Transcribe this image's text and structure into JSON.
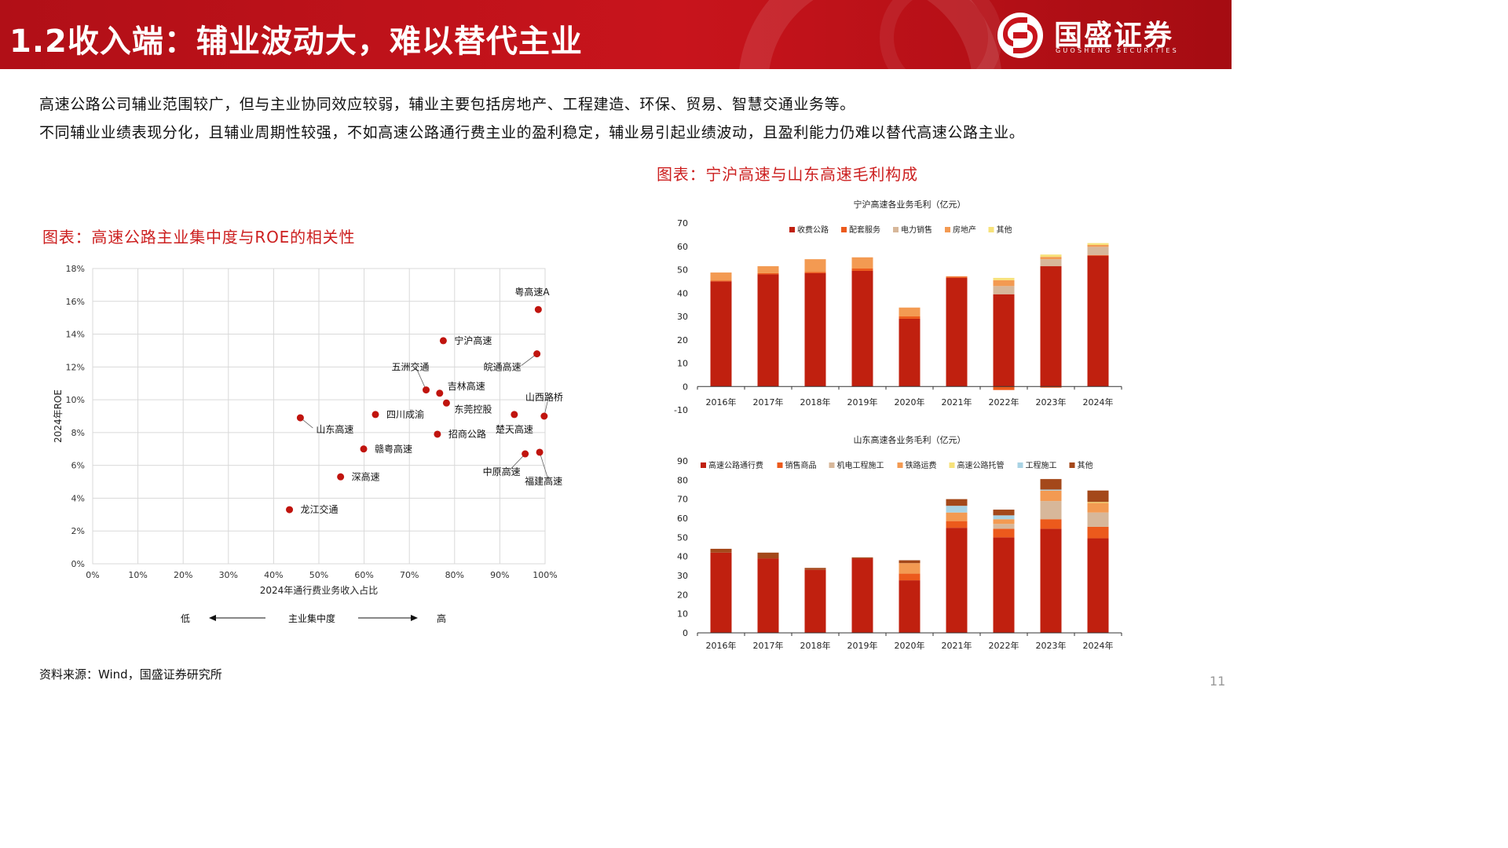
{
  "header": {
    "title": "1.2收入端：辅业波动大，难以替代主业",
    "logo_text": "国盛证券",
    "logo_sub": "GUOSHENG SECURITIES",
    "accent_color": "#c8141c"
  },
  "body": {
    "paragraph1": "高速公路公司辅业范围较广，但与主业协同效应较弱，辅业主要包括房地产、工程建造、环保、贸易、智慧交通业务等。",
    "paragraph2": "不同辅业业绩表现分化，且辅业周期性较强，不如高速公路通行费主业的盈利稳定，辅业易引起业绩波动，且盈利能力仍难以替代高速公路主业。"
  },
  "captions": {
    "scatter": "图表：高速公路主业集中度与ROE的相关性",
    "bars": "图表：宁沪高速与山东高速毛利构成"
  },
  "source": "资料来源：Wind，国盛证券研究所",
  "page_number": "11",
  "chart_data": [
    {
      "type": "scatter",
      "title": "",
      "xlabel": "2024年通行费业务收入占比",
      "ylabel": "2024年ROE",
      "xlim": [
        0,
        100
      ],
      "ylim": [
        0,
        18
      ],
      "x_ticks": [
        "0%",
        "10%",
        "20%",
        "30%",
        "40%",
        "50%",
        "60%",
        "70%",
        "80%",
        "90%",
        "100%"
      ],
      "y_ticks": [
        "0%",
        "2%",
        "4%",
        "6%",
        "8%",
        "10%",
        "12%",
        "14%",
        "16%",
        "18%"
      ],
      "grid": true,
      "marker_color": "#c0140e",
      "points": [
        {
          "name": "粤高速A",
          "x": 98.5,
          "y": 15.5
        },
        {
          "name": "宁沪高速",
          "x": 77.5,
          "y": 13.6
        },
        {
          "name": "皖通高速",
          "x": 98.2,
          "y": 12.8
        },
        {
          "name": "五洲交通",
          "x": 73.7,
          "y": 10.6
        },
        {
          "name": "吉林高速",
          "x": 76.7,
          "y": 10.4
        },
        {
          "name": "山西路桥",
          "x": 99.8,
          "y": 9.0
        },
        {
          "name": "东莞控股",
          "x": 78.2,
          "y": 9.8
        },
        {
          "name": "四川成渝",
          "x": 62.5,
          "y": 9.1
        },
        {
          "name": "楚天高速",
          "x": 93.2,
          "y": 9.1
        },
        {
          "name": "山东高速",
          "x": 45.9,
          "y": 8.9
        },
        {
          "name": "招商公路",
          "x": 76.2,
          "y": 7.9
        },
        {
          "name": "赣粤高速",
          "x": 59.9,
          "y": 7.0
        },
        {
          "name": "中原高速",
          "x": 95.6,
          "y": 6.7
        },
        {
          "name": "福建高速",
          "x": 98.8,
          "y": 6.8
        },
        {
          "name": "深高速",
          "x": 54.8,
          "y": 5.3
        },
        {
          "name": "龙江交通",
          "x": 43.5,
          "y": 3.3
        }
      ],
      "axis_annotation": {
        "low": "低",
        "middle": "主业集中度",
        "high": "高"
      }
    },
    {
      "type": "bar",
      "stacked": true,
      "title": "宁沪高速各业务毛利（亿元）",
      "ylim": [
        -10,
        70
      ],
      "y_ticks": [
        "-10",
        "0",
        "10",
        "20",
        "30",
        "40",
        "50",
        "60",
        "70"
      ],
      "legend_position": "top",
      "categories": [
        "2016年",
        "2017年",
        "2018年",
        "2019年",
        "2020年",
        "2021年",
        "2022年",
        "2023年",
        "2024年"
      ],
      "series": [
        {
          "name": "收费公路",
          "color": "#c0200f",
          "values": [
            45.0,
            48.0,
            48.5,
            49.5,
            29.0,
            46.5,
            39.5,
            51.5,
            56.0
          ]
        },
        {
          "name": "配套服务",
          "color": "#ec5a1c",
          "values": [
            0.3,
            0.5,
            0.5,
            1.0,
            1.0,
            0.5,
            -1.5,
            -0.5,
            0.3
          ]
        },
        {
          "name": "电力销售",
          "color": "#d7b79a",
          "values": [
            0,
            0,
            0,
            0,
            0,
            0,
            3.5,
            3.0,
            3.5
          ]
        },
        {
          "name": "房地产",
          "color": "#f39a52",
          "values": [
            3.5,
            3.0,
            5.5,
            4.8,
            3.8,
            0.2,
            2.5,
            1.0,
            0.8
          ]
        },
        {
          "name": "其他",
          "color": "#f7e27a",
          "values": [
            0,
            0,
            0,
            0,
            0,
            0,
            1.0,
            1.0,
            0.8
          ]
        }
      ]
    },
    {
      "type": "bar",
      "stacked": true,
      "title": "山东高速各业务毛利（亿元）",
      "ylim": [
        0,
        90
      ],
      "y_ticks": [
        "0",
        "10",
        "20",
        "30",
        "40",
        "50",
        "60",
        "70",
        "80",
        "90"
      ],
      "legend_position": "top",
      "categories": [
        "2016年",
        "2017年",
        "2018年",
        "2019年",
        "2020年",
        "2021年",
        "2022年",
        "2023年",
        "2024年"
      ],
      "series": [
        {
          "name": "高速公路通行费",
          "color": "#c0200f",
          "values": [
            42.0,
            39.0,
            33.0,
            39.0,
            27.5,
            55.0,
            50.0,
            54.5,
            49.5
          ]
        },
        {
          "name": "销售商品",
          "color": "#ec5a1c",
          "values": [
            0,
            0,
            0,
            0,
            3.5,
            3.5,
            4.5,
            5.0,
            6.0
          ]
        },
        {
          "name": "机电工程施工",
          "color": "#d7b79a",
          "values": [
            0,
            0,
            0,
            0,
            0,
            0,
            2.5,
            9.5,
            7.5
          ]
        },
        {
          "name": "铁路运费",
          "color": "#f39a52",
          "values": [
            0,
            0,
            0,
            0,
            5.5,
            4.5,
            2.5,
            5.5,
            5.0
          ]
        },
        {
          "name": "高速公路托管",
          "color": "#f7e27a",
          "values": [
            0,
            0,
            0,
            0,
            0,
            0,
            0,
            0,
            0.5
          ]
        },
        {
          "name": "工程施工",
          "color": "#a9d3e4",
          "values": [
            0,
            0,
            0,
            0,
            0,
            3.5,
            2.0,
            0.5,
            0
          ]
        },
        {
          "name": "其他",
          "color": "#a4481a",
          "values": [
            2.0,
            3.0,
            1.0,
            0.5,
            1.5,
            3.5,
            3.0,
            5.5,
            6.0
          ]
        }
      ]
    }
  ]
}
